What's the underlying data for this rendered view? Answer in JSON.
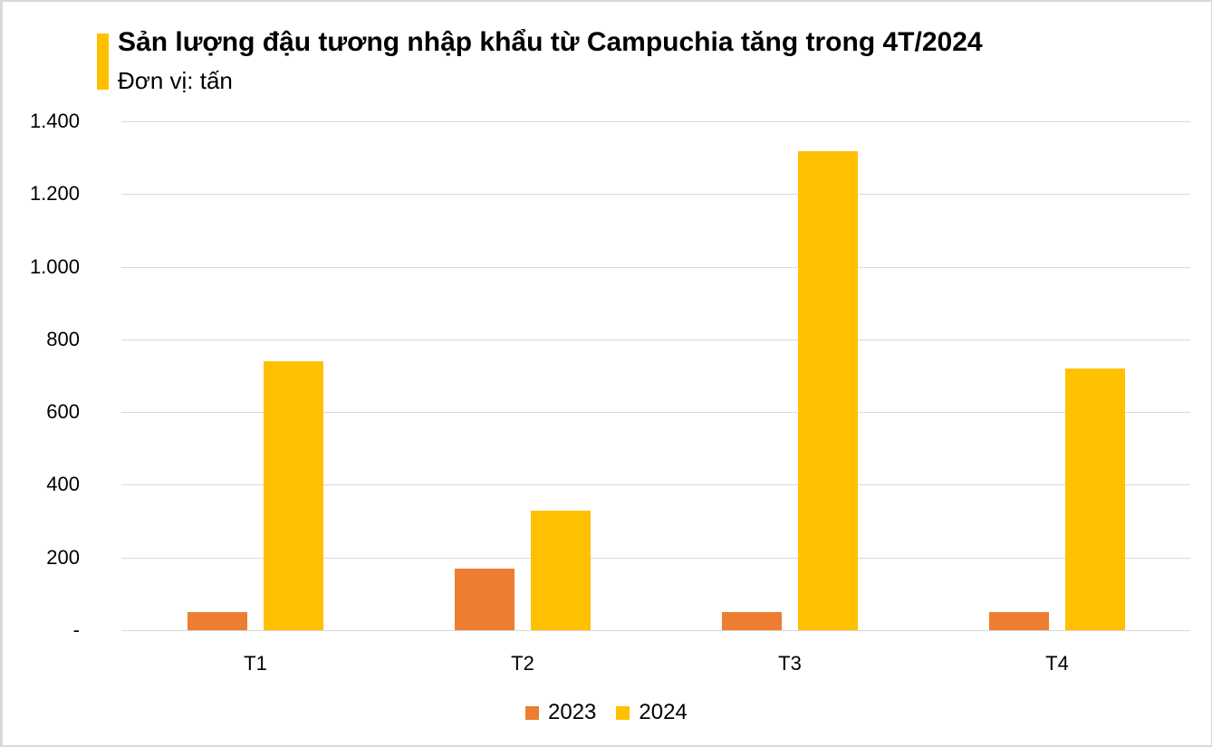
{
  "title": "Sản lượng đậu tương nhập khẩu từ Campuchia tăng trong 4T/2024",
  "subtitle": "Đơn vị: tấn",
  "colors": {
    "accent": "#FFC000",
    "series_2023": "#ED7D31",
    "series_2024": "#FFC000",
    "grid": "#D9D9D9"
  },
  "y_ticks": [
    "1.400",
    "1.200",
    "1.000",
    "800",
    "600",
    "400",
    "200",
    "-"
  ],
  "x_labels": [
    "T1",
    "T2",
    "T3",
    "T4"
  ],
  "legend": [
    {
      "label": "2023"
    },
    {
      "label": "2024"
    }
  ],
  "chart_data": {
    "type": "bar",
    "title": "Sản lượng đậu tương nhập khẩu từ Campuchia tăng trong 4T/2024",
    "subtitle": "Đơn vị: tấn",
    "categories": [
      "T1",
      "T2",
      "T3",
      "T4"
    ],
    "series": [
      {
        "name": "2023",
        "color": "#ED7D31",
        "values": [
          50,
          170,
          50,
          50
        ]
      },
      {
        "name": "2024",
        "color": "#FFC000",
        "values": [
          740,
          330,
          1318,
          720
        ]
      }
    ],
    "xlabel": "",
    "ylabel": "tấn",
    "ylim": [
      0,
      1400
    ],
    "y_tick_step": 200,
    "grid": true,
    "legend_position": "bottom"
  }
}
